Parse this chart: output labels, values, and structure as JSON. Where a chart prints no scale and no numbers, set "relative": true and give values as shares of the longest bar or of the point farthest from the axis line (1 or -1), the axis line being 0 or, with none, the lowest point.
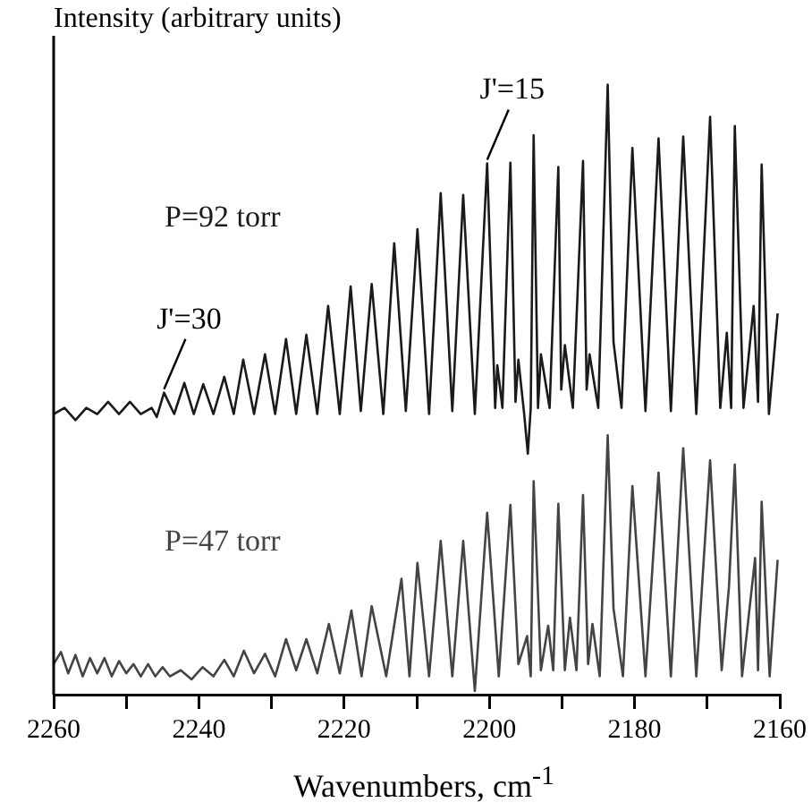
{
  "chart_data": {
    "type": "line",
    "ylabel": "Intensity (arbitrary units)",
    "xlabel": "Wavenumbers, cm$^{-1}$",
    "relative": true,
    "legend": false,
    "grid": false,
    "marker": "none",
    "line_style": "solid",
    "xlim": [
      2260,
      2160
    ],
    "xticks": [
      2260,
      {
        "value": 2250,
        "label": null
      },
      2240,
      {
        "value": 2230,
        "label": null
      },
      2220,
      {
        "value": 2210,
        "label": null
      },
      2200,
      {
        "value": 2190,
        "label": null
      },
      2180,
      {
        "value": 2170,
        "label": null
      },
      2160
    ],
    "series": [
      {
        "name": "P=92 torr",
        "color": "#1a1a1a",
        "x": [
          2260,
          2258.5,
          2257,
          2255.5,
          2254,
          2252.5,
          2251,
          2249.5,
          2248,
          2246.5,
          2245.8,
          2244.8,
          2243.4,
          2242.0,
          2240.7,
          2239.4,
          2238,
          2236.5,
          2235.2,
          2233.9,
          2232.4,
          2230.9,
          2229.5,
          2228.0,
          2226.6,
          2225.2,
          2223.7,
          2222.2,
          2220.6,
          2219.1,
          2217.7,
          2216.2,
          2214.6,
          2213.1,
          2211.5,
          2209.9,
          2208.3,
          2206.7,
          2205.1,
          2203.6,
          2202,
          2200.3,
          2199.2,
          2198.9,
          2198.2,
          2197.1,
          2196.4,
          2196.0,
          2195.2,
          2194.7,
          2194.3,
          2193.9,
          2193.3,
          2192.9,
          2191.7,
          2190.5,
          2190.1,
          2189.6,
          2188.5,
          2187.1,
          2186.6,
          2186.2,
          2185,
          2183.7,
          2182.9,
          2181.8,
          2180.3,
          2178.5,
          2176.7,
          2175,
          2173.3,
          2171.5,
          2169.6,
          2168.2,
          2167.3,
          2166.7,
          2166.2,
          2165,
          2163.6,
          2163.0,
          2162.5,
          2161.5,
          2160.3
        ],
        "values": [
          0.46,
          0.47,
          0.45,
          0.47,
          0.46,
          0.48,
          0.46,
          0.48,
          0.46,
          0.47,
          0.455,
          0.495,
          0.46,
          0.511,
          0.46,
          0.509,
          0.46,
          0.521,
          0.46,
          0.549,
          0.46,
          0.558,
          0.46,
          0.583,
          0.46,
          0.59,
          0.46,
          0.637,
          0.46,
          0.669,
          0.465,
          0.673,
          0.46,
          0.74,
          0.465,
          0.763,
          0.46,
          0.822,
          0.465,
          0.819,
          0.46,
          0.871,
          0.47,
          0.54,
          0.47,
          0.872,
          0.48,
          0.549,
          0.46,
          0.395,
          0.47,
          0.917,
          0.47,
          0.558,
          0.47,
          0.865,
          0.5,
          0.573,
          0.47,
          0.875,
          0.5,
          0.558,
          0.47,
          1,
          0.578,
          0.47,
          0.896,
          0.465,
          0.912,
          0.465,
          0.915,
          0.46,
          0.947,
          0.47,
          0.593,
          0.47,
          0.932,
          0.47,
          0.637,
          0.48,
          0.869,
          0.46,
          0.625
        ]
      },
      {
        "name": "P=47 torr",
        "color": "#444444",
        "x": [
          2260,
          2259,
          2258,
          2257,
          2256,
          2255,
          2254,
          2253,
          2252,
          2251,
          2250,
          2249,
          2248,
          2247,
          2246,
          2245,
          2244,
          2242.5,
          2241,
          2239.5,
          2238,
          2236.5,
          2235.2,
          2233.8,
          2232.4,
          2230.9,
          2229.5,
          2228.0,
          2226.6,
          2225.2,
          2223.7,
          2222.1,
          2220.6,
          2219.0,
          2217.6,
          2216.2,
          2214.2,
          2212.1,
          2211,
          2209.9,
          2208.3,
          2206.7,
          2205.1,
          2203.6,
          2202,
          2200.3,
          2198.7,
          2197.1,
          2196,
          2194.8,
          2194.3,
          2193.9,
          2192.9,
          2191.9,
          2191.2,
          2190.5,
          2189.6,
          2188.9,
          2188,
          2187.1,
          2186.4,
          2185.8,
          2184.8,
          2183.7,
          2182.9,
          2181.6,
          2180.3,
          2178.5,
          2176.7,
          2175,
          2173.3,
          2171.5,
          2169.6,
          2168,
          2167.0,
          2166.2,
          2165.2,
          2163.4,
          2163,
          2162.5,
          2161.4,
          2160.3
        ],
        "values": [
          0.05,
          0.07,
          0.035,
          0.065,
          0.03,
          0.06,
          0.035,
          0.06,
          0.03,
          0.055,
          0.035,
          0.05,
          0.03,
          0.05,
          0.03,
          0.045,
          0.03,
          0.04,
          0.025,
          0.045,
          0.03,
          0.057,
          0.03,
          0.072,
          0.035,
          0.067,
          0.03,
          0.091,
          0.04,
          0.091,
          0.035,
          0.116,
          0.035,
          0.138,
          0.03,
          0.145,
          0.03,
          0.19,
          0.03,
          0.216,
          0.03,
          0.252,
          0.03,
          0.252,
          0.006,
          0.298,
          0.03,
          0.311,
          0.05,
          0.096,
          0.03,
          0.35,
          0.04,
          0.113,
          0.04,
          0.313,
          0.04,
          0.126,
          0.04,
          0.327,
          0.05,
          0.116,
          0.03,
          0.425,
          0.141,
          0.03,
          0.342,
          0.03,
          0.364,
          0.03,
          0.404,
          0.03,
          0.384,
          0.04,
          0.177,
          0.377,
          0.03,
          0.224,
          0.04,
          0.316,
          0.03,
          0.221
        ]
      }
    ],
    "annotations": [
      {
        "text": "J'=30",
        "x": 2244.8,
        "y": 0.495
      },
      {
        "text": "J'=15",
        "x": 2200.3,
        "y": 0.871
      }
    ]
  }
}
